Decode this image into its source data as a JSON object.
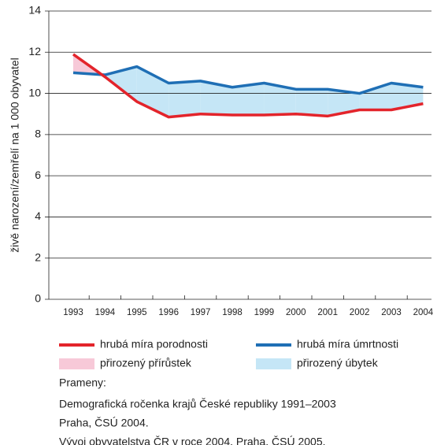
{
  "chart_data": {
    "type": "line",
    "y_label": "živě narození/zemřelí na 1 000 obyvatel",
    "categories": [
      "1993",
      "1994",
      "1995",
      "1996",
      "1997",
      "1998",
      "1999",
      "2000",
      "2001",
      "2002",
      "2003",
      "2004"
    ],
    "series": [
      {
        "name": "hrubá míra porodnosti",
        "color": "#e3242b",
        "values": [
          11.9,
          10.8,
          9.6,
          8.85,
          9.0,
          8.95,
          8.95,
          9.0,
          8.9,
          9.2,
          9.2,
          9.5
        ]
      },
      {
        "name": "hrubá míra úmrtnosti",
        "color": "#1f6fb5",
        "values": [
          11.0,
          10.9,
          11.3,
          10.5,
          10.6,
          10.3,
          10.5,
          10.2,
          10.2,
          10.0,
          10.5,
          10.3
        ]
      }
    ],
    "fills": [
      {
        "name": "přirozený přírůstek",
        "color": "#f7c9d8"
      },
      {
        "name": "přirozený úbytek",
        "color": "#c5e6f6"
      }
    ],
    "ylim": [
      0,
      14
    ],
    "yticks": [
      0,
      2,
      4,
      6,
      8,
      10,
      12,
      14
    ],
    "grid": true,
    "sources": {
      "heading": "Prameny:",
      "lines": [
        "Demografická ročenka krajů České republiky 1991–2003",
        "Praha, ČSÚ 2004.",
        "Vývoj obyvatelstva ČR v roce 2004. Praha, ČSÚ 2005."
      ]
    }
  }
}
